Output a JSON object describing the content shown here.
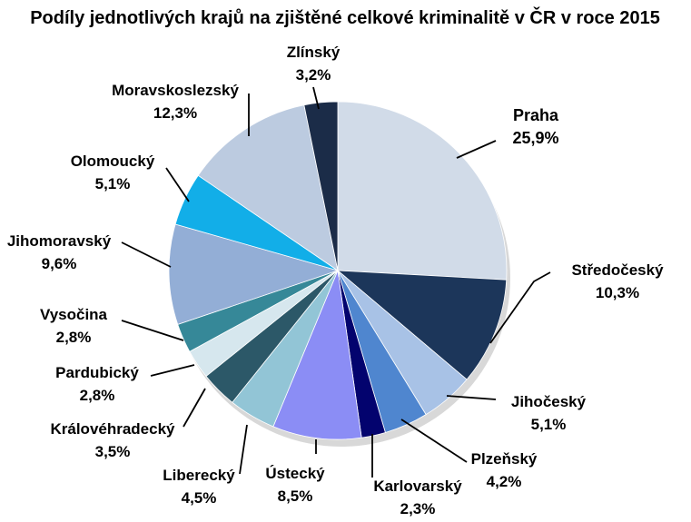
{
  "chart_data": {
    "type": "pie",
    "title": "Podíly jednotlivých krajů na zjištěné celkové kriminalitě v ČR v roce 2015",
    "unit": "%",
    "slices": [
      {
        "name": "Praha",
        "value": 25.9,
        "value_label": "25,9%",
        "color": "#d1dbe8",
        "emphasized": true
      },
      {
        "name": "Středočeský",
        "value": 10.3,
        "value_label": "10,3%",
        "color": "#1c365a"
      },
      {
        "name": "Jihočeský",
        "value": 5.1,
        "value_label": "5,1%",
        "color": "#a8c2e6"
      },
      {
        "name": "Plzeňský",
        "value": 4.2,
        "value_label": "4,2%",
        "color": "#4f86cf"
      },
      {
        "name": "Karlovarský",
        "value": 2.3,
        "value_label": "2,3%",
        "color": "#03036e"
      },
      {
        "name": "Ústecký",
        "value": 8.5,
        "value_label": "8,5%",
        "color": "#8b8df5"
      },
      {
        "name": "Liberecký",
        "value": 4.5,
        "value_label": "4,5%",
        "color": "#92c5d6"
      },
      {
        "name": "Královéhradecký",
        "value": 3.5,
        "value_label": "3,5%",
        "color": "#2c5868"
      },
      {
        "name": "Pardubický",
        "value": 2.8,
        "value_label": "2,8%",
        "color": "#d6e7ee"
      },
      {
        "name": "Vysočina",
        "value": 2.8,
        "value_label": "2,8%",
        "color": "#368898"
      },
      {
        "name": "Jihomoravský",
        "value": 9.6,
        "value_label": "9,6%",
        "color": "#93aed6"
      },
      {
        "name": "Olomoucký",
        "value": 5.1,
        "value_label": "5,1%",
        "color": "#12aee8"
      },
      {
        "name": "Moravskoslezský",
        "value": 12.3,
        "value_label": "12,3%",
        "color": "#bccbe0"
      },
      {
        "name": "Zlínský",
        "value": 3.2,
        "value_label": "3,2%",
        "color": "#1b2c48"
      }
    ]
  }
}
